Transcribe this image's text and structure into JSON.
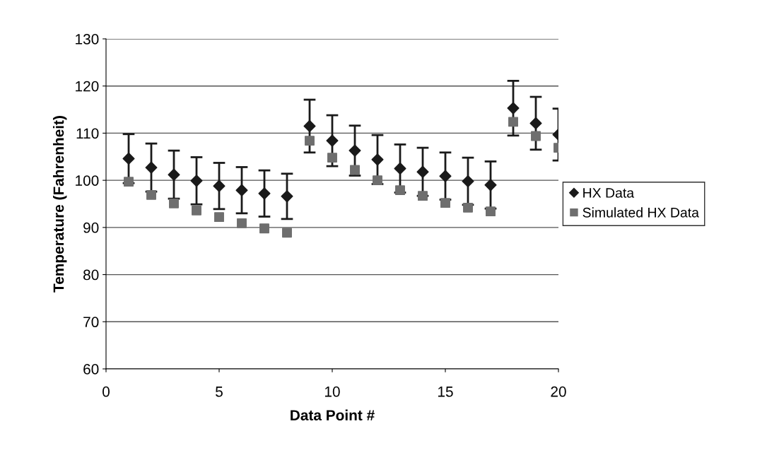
{
  "chart_data": {
    "type": "scatter",
    "xlabel": "Data Point #",
    "ylabel": "Temperature (Fahrenheit)",
    "x": [
      1,
      2,
      3,
      4,
      5,
      6,
      7,
      8,
      9,
      10,
      11,
      12,
      13,
      14,
      15,
      16,
      17,
      18,
      19,
      20
    ],
    "series": [
      {
        "name": "HX Data",
        "color": "#1a1a1a",
        "marker": "diamond",
        "values": [
          104.6,
          102.7,
          101.2,
          99.9,
          98.8,
          97.9,
          97.2,
          96.6,
          111.5,
          108.4,
          106.3,
          104.4,
          102.5,
          101.8,
          100.9,
          99.8,
          99.0,
          115.3,
          112.1,
          109.7
        ],
        "errors": [
          5.2,
          5.1,
          5.1,
          5.0,
          4.9,
          4.9,
          4.9,
          4.8,
          5.6,
          5.4,
          5.3,
          5.2,
          5.1,
          5.1,
          5.0,
          5.0,
          5.0,
          5.8,
          5.6,
          5.5
        ]
      },
      {
        "name": "Simulated HX Data",
        "color": "#6e6e6e",
        "marker": "square",
        "values": [
          99.7,
          96.9,
          95.1,
          93.6,
          92.2,
          90.9,
          89.8,
          88.9,
          108.4,
          104.8,
          102.2,
          100.0,
          97.9,
          96.7,
          95.2,
          94.2,
          93.4,
          112.4,
          109.4,
          106.9
        ]
      }
    ],
    "xlim": [
      0,
      20
    ],
    "xticks": [
      0,
      5,
      10,
      15,
      20
    ],
    "ylim": [
      60,
      130
    ],
    "yticks": [
      60,
      70,
      80,
      90,
      100,
      110,
      120,
      130
    ],
    "grid": "y",
    "legend": "right"
  }
}
